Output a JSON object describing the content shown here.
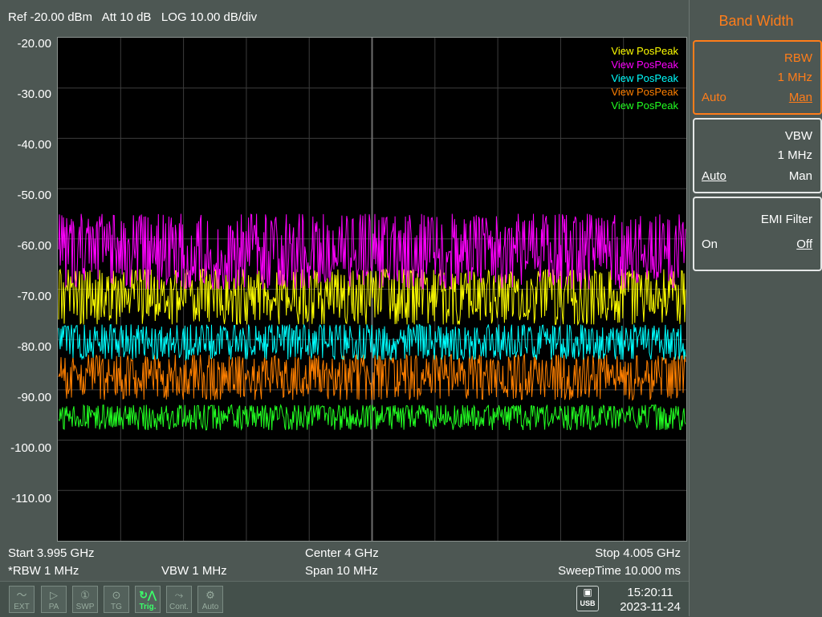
{
  "header": {
    "status_text": "Ref -20.00 dBm   Att 10 dB   LOG 10.00 dB/div"
  },
  "chart_data": {
    "type": "line",
    "xlabel": "",
    "ylabel": "",
    "y_tick_labels": [
      "-20.00",
      "-30.00",
      "-40.00",
      "-50.00",
      "-60.00",
      "-70.00",
      "-80.00",
      "-90.00",
      "-100.00",
      "-110.00"
    ],
    "ylim": [
      -120,
      -20
    ],
    "xlim_ghz": [
      3.995,
      4.005
    ],
    "grid": true,
    "legend_placement": "top-right",
    "series": [
      {
        "name": "View PosPeak",
        "color": "#ffff00",
        "mean_dbm": -70,
        "min_dbm": -77,
        "max_dbm": -66
      },
      {
        "name": "View PosPeak",
        "color": "#ff00ff",
        "mean_dbm": -62,
        "min_dbm": -70,
        "max_dbm": -55
      },
      {
        "name": "View PosPeak",
        "color": "#00ffff",
        "mean_dbm": -80,
        "min_dbm": -84,
        "max_dbm": -77
      },
      {
        "name": "View PosPeak",
        "color": "#ff8000",
        "mean_dbm": -87,
        "min_dbm": -92,
        "max_dbm": -83
      },
      {
        "name": "View PosPeak",
        "color": "#22ff22",
        "mean_dbm": -95,
        "min_dbm": -98,
        "max_dbm": -93
      }
    ]
  },
  "footer": {
    "start": "Start 3.995 GHz",
    "center": "Center 4 GHz",
    "stop": "Stop 4.005 GHz",
    "rbw": "*RBW 1 MHz",
    "vbw": "VBW 1 MHz",
    "span": "Span 10 MHz",
    "sweep_time": "SweepTime 10.000 ms"
  },
  "statusbar": {
    "icons": [
      {
        "label": "EXT",
        "glyph": "〜",
        "icon": "ext-icon",
        "active": false
      },
      {
        "label": "PA",
        "glyph": "▷",
        "icon": "pa-icon",
        "active": false
      },
      {
        "label": "SWP",
        "glyph": "①",
        "icon": "swp-icon",
        "active": false
      },
      {
        "label": "TG",
        "glyph": "⊙",
        "icon": "tg-icon",
        "active": false
      },
      {
        "label": "Trig.",
        "glyph": "↻⋀",
        "icon": "trig-icon",
        "active": true
      },
      {
        "label": "Cont.",
        "glyph": "⤳",
        "icon": "cont-icon",
        "active": false
      },
      {
        "label": "Auto",
        "glyph": "⚙",
        "icon": "auto-icon",
        "active": false
      }
    ],
    "usb_label": "USB",
    "time": "15:20:11",
    "date": "2023-11-24"
  },
  "menu": {
    "title": "Band Width",
    "rbw": {
      "title": "RBW",
      "value": "1 MHz",
      "left": "Auto",
      "right": "Man",
      "selected_option": "Man"
    },
    "vbw": {
      "title": "VBW",
      "value": "1 MHz",
      "left": "Auto",
      "right": "Man",
      "selected_option": "Auto"
    },
    "emi": {
      "title": "EMI Filter",
      "left": "On",
      "right": "Off",
      "selected_option": "Off"
    }
  }
}
